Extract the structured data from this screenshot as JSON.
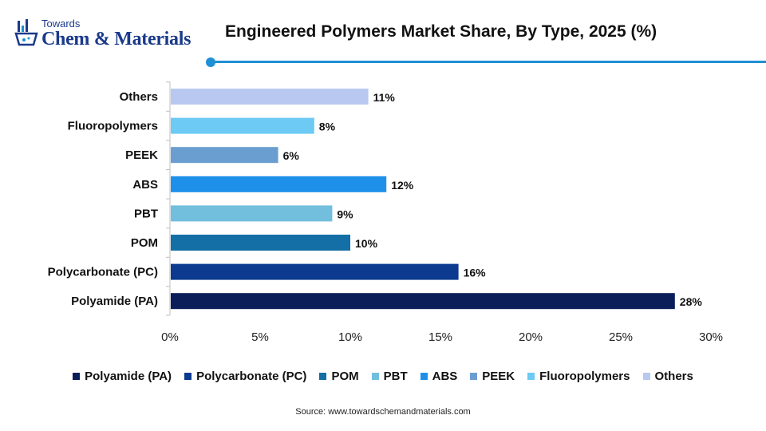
{
  "brand": {
    "small": "Towards",
    "big": "Chem & Materials"
  },
  "source": "Source: www.towardschemandmaterials.com",
  "chart_data": {
    "type": "bar",
    "orientation": "horizontal",
    "title": "Engineered Polymers Market Share, By Type, 2025 (%)",
    "categories": [
      "Others",
      "Fluoropolymers",
      "PEEK",
      "ABS",
      "PBT",
      "POM",
      "Polycarbonate (PC)",
      "Polyamide (PA)"
    ],
    "values": [
      11,
      8,
      6,
      12,
      9,
      10,
      16,
      28
    ],
    "value_labels": [
      "11%",
      "8%",
      "6%",
      "12%",
      "9%",
      "10%",
      "16%",
      "28%"
    ],
    "colors": [
      "#b8c8f0",
      "#6ccaf5",
      "#6b9ed0",
      "#1e90ea",
      "#72bedd",
      "#136fa6",
      "#0b3a8e",
      "#0b1e5a"
    ],
    "xlim": [
      0,
      30
    ],
    "x_ticks": [
      "0%",
      "5%",
      "10%",
      "15%",
      "20%",
      "25%",
      "30%"
    ],
    "grid": false,
    "legend": {
      "placement": "bottom",
      "entries": [
        {
          "label": "Polyamide (PA)",
          "color": "#0b1e5a"
        },
        {
          "label": "Polycarbonate (PC)",
          "color": "#0b3a8e"
        },
        {
          "label": "POM",
          "color": "#136fa6"
        },
        {
          "label": "PBT",
          "color": "#72bedd"
        },
        {
          "label": "ABS",
          "color": "#1e90ea"
        },
        {
          "label": "PEEK",
          "color": "#6b9ed0"
        },
        {
          "label": "Fluoropolymers",
          "color": "#6ccaf5"
        },
        {
          "label": "Others",
          "color": "#b8c8f0"
        }
      ]
    }
  }
}
